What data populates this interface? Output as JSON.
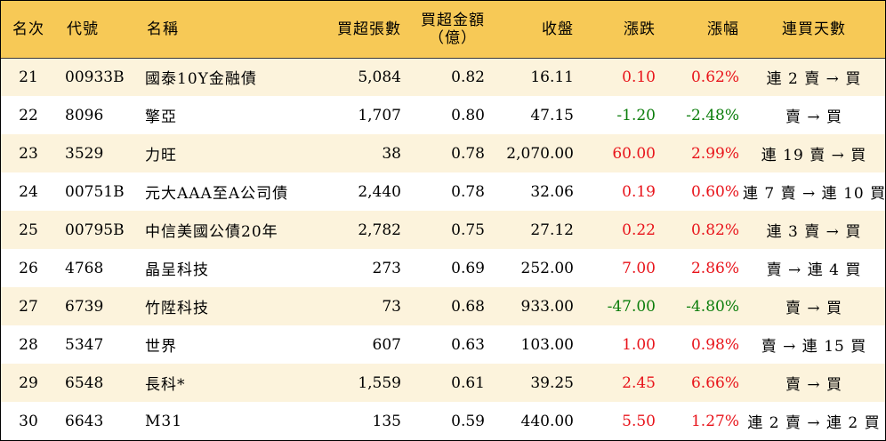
{
  "columns": {
    "rank": "名次",
    "code": "代號",
    "name": "名稱",
    "buy_volume": "買超張數",
    "buy_amount_line1": "買超金額",
    "buy_amount_line2": "（億）",
    "close": "收盤",
    "change": "漲跌",
    "change_pct": "漲幅",
    "days": "連買天數"
  },
  "colors": {
    "header_bg": "#f7c956",
    "row_alt_bg": "#fcf3dc",
    "up": "#e8141b",
    "down": "#0b7d0b"
  },
  "rows": [
    {
      "rank": "21",
      "code": "00933B",
      "name": "國泰10Y金融債",
      "buy_volume": "5,084",
      "buy_amount": "0.82",
      "close": "16.11",
      "change": "0.10",
      "change_pct": "0.62%",
      "direction": "up",
      "days": "連 2 賣 → 買"
    },
    {
      "rank": "22",
      "code": "8096",
      "name": "擎亞",
      "buy_volume": "1,707",
      "buy_amount": "0.80",
      "close": "47.15",
      "change": "-1.20",
      "change_pct": "-2.48%",
      "direction": "down",
      "days": "賣 → 買"
    },
    {
      "rank": "23",
      "code": "3529",
      "name": "力旺",
      "buy_volume": "38",
      "buy_amount": "0.78",
      "close": "2,070.00",
      "change": "60.00",
      "change_pct": "2.99%",
      "direction": "up",
      "days": "連 19 賣 → 買"
    },
    {
      "rank": "24",
      "code": "00751B",
      "name": "元大AAA至A公司債",
      "buy_volume": "2,440",
      "buy_amount": "0.78",
      "close": "32.06",
      "change": "0.19",
      "change_pct": "0.60%",
      "direction": "up",
      "days": "連 7 賣 → 連 10 買"
    },
    {
      "rank": "25",
      "code": "00795B",
      "name": "中信美國公債20年",
      "buy_volume": "2,782",
      "buy_amount": "0.75",
      "close": "27.12",
      "change": "0.22",
      "change_pct": "0.82%",
      "direction": "up",
      "days": "連 3 賣 → 買"
    },
    {
      "rank": "26",
      "code": "4768",
      "name": "晶呈科技",
      "buy_volume": "273",
      "buy_amount": "0.69",
      "close": "252.00",
      "change": "7.00",
      "change_pct": "2.86%",
      "direction": "up",
      "days": "賣 → 連 4 買"
    },
    {
      "rank": "27",
      "code": "6739",
      "name": "竹陞科技",
      "buy_volume": "73",
      "buy_amount": "0.68",
      "close": "933.00",
      "change": "-47.00",
      "change_pct": "-4.80%",
      "direction": "down",
      "days": "賣 → 買"
    },
    {
      "rank": "28",
      "code": "5347",
      "name": "世界",
      "buy_volume": "607",
      "buy_amount": "0.63",
      "close": "103.00",
      "change": "1.00",
      "change_pct": "0.98%",
      "direction": "up",
      "days": "賣 → 連 15 買"
    },
    {
      "rank": "29",
      "code": "6548",
      "name": "長科*",
      "buy_volume": "1,559",
      "buy_amount": "0.61",
      "close": "39.25",
      "change": "2.45",
      "change_pct": "6.66%",
      "direction": "up",
      "days": "賣 → 買"
    },
    {
      "rank": "30",
      "code": "6643",
      "name": "M31",
      "buy_volume": "135",
      "buy_amount": "0.59",
      "close": "440.00",
      "change": "5.50",
      "change_pct": "1.27%",
      "direction": "up",
      "days": "連 2 賣 → 連 2 買"
    }
  ]
}
